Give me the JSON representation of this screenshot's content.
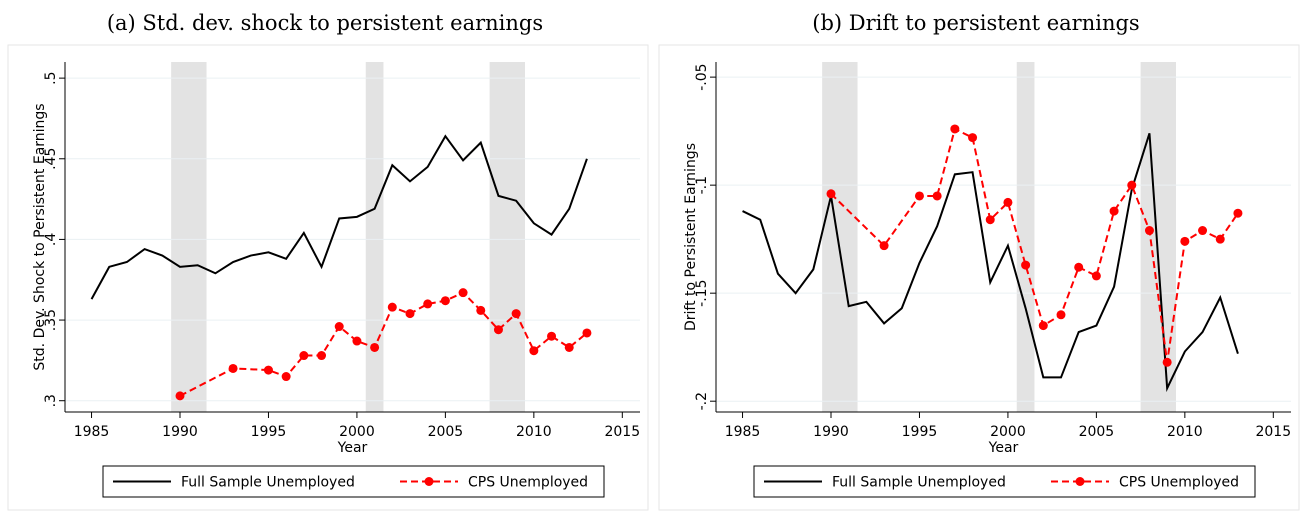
{
  "chart_data": [
    {
      "type": "line",
      "title": "(a) Std. dev. shock to persistent earnings",
      "ylabel": "Std. Dev. Shock to Persistent Earnings",
      "xlabel": "Year",
      "xlim": [
        1983.5,
        2016
      ],
      "xticks": [
        1985,
        1990,
        1995,
        2000,
        2005,
        2010,
        2015
      ],
      "ylim": [
        0.293,
        0.51
      ],
      "yticks": [
        {
          "value": 0.3,
          "label": ".3"
        },
        {
          "value": 0.35,
          "label": ".35"
        },
        {
          "value": 0.4,
          "label": ".4"
        },
        {
          "value": 0.45,
          "label": ".45"
        },
        {
          "value": 0.5,
          "label": ".5"
        }
      ],
      "grid": true,
      "shading": [
        [
          1989.5,
          1991.5
        ],
        [
          2000.5,
          2001.5
        ],
        [
          2007.5,
          2009.5
        ]
      ],
      "series": [
        {
          "name": "Full Sample Unemployed",
          "color": "#000000",
          "markers": false,
          "x": [
            1985,
            1986,
            1987,
            1988,
            1989,
            1990,
            1991,
            1992,
            1993,
            1994,
            1995,
            1996,
            1997,
            1998,
            1999,
            2000,
            2001,
            2002,
            2003,
            2004,
            2005,
            2006,
            2007,
            2008,
            2009,
            2010,
            2011,
            2012,
            2013
          ],
          "values": [
            0.363,
            0.383,
            0.386,
            0.394,
            0.39,
            0.383,
            0.384,
            0.379,
            0.386,
            0.39,
            0.392,
            0.388,
            0.404,
            0.383,
            0.413,
            0.414,
            0.419,
            0.446,
            0.436,
            0.445,
            0.464,
            0.449,
            0.46,
            0.427,
            0.424,
            0.41,
            0.403,
            0.419,
            0.45
          ]
        },
        {
          "name": "CPS Unemployed",
          "color": "#ff0000",
          "markers": true,
          "x": [
            1990,
            1993,
            1995,
            1996,
            1997,
            1998,
            1999,
            2000,
            2001,
            2002,
            2003,
            2004,
            2005,
            2006,
            2007,
            2008,
            2009,
            2010,
            2011,
            2012,
            2013
          ],
          "values": [
            0.303,
            0.32,
            0.319,
            0.315,
            0.328,
            0.328,
            0.346,
            0.337,
            0.333,
            0.358,
            0.354,
            0.36,
            0.362,
            0.367,
            0.356,
            0.344,
            0.354,
            0.331,
            0.34,
            0.333,
            0.342
          ]
        }
      ]
    },
    {
      "type": "line",
      "title": "(b) Drift to persistent earnings",
      "ylabel": "Drift to Persistent Earnings",
      "xlabel": "Year",
      "xlim": [
        1983.5,
        2016
      ],
      "xticks": [
        1985,
        1990,
        1995,
        2000,
        2005,
        2010,
        2015
      ],
      "ylim": [
        -0.205,
        -0.043
      ],
      "yticks": [
        {
          "value": -0.2,
          "label": "-.2"
        },
        {
          "value": -0.15,
          "label": "-.15"
        },
        {
          "value": -0.1,
          "label": "-.1"
        },
        {
          "value": -0.05,
          "label": "-.05"
        }
      ],
      "grid": true,
      "shading": [
        [
          1989.5,
          1991.5
        ],
        [
          2000.5,
          2001.5
        ],
        [
          2007.5,
          2009.5
        ]
      ],
      "series": [
        {
          "name": "Full Sample Unemployed",
          "color": "#000000",
          "markers": false,
          "x": [
            1985,
            1986,
            1987,
            1988,
            1989,
            1990,
            1991,
            1992,
            1993,
            1994,
            1995,
            1996,
            1997,
            1998,
            1999,
            2000,
            2001,
            2002,
            2003,
            2004,
            2005,
            2006,
            2007,
            2008,
            2009,
            2010,
            2011,
            2012,
            2013
          ],
          "values": [
            -0.112,
            -0.116,
            -0.141,
            -0.15,
            -0.139,
            -0.105,
            -0.156,
            -0.154,
            -0.164,
            -0.157,
            -0.136,
            -0.119,
            -0.095,
            -0.094,
            -0.145,
            -0.128,
            -0.157,
            -0.189,
            -0.189,
            -0.168,
            -0.165,
            -0.147,
            -0.102,
            -0.076,
            -0.194,
            -0.177,
            -0.168,
            -0.152,
            -0.178
          ]
        },
        {
          "name": "CPS Unemployed",
          "color": "#ff0000",
          "markers": true,
          "x": [
            1990,
            1993,
            1995,
            1996,
            1997,
            1998,
            1999,
            2000,
            2001,
            2002,
            2003,
            2004,
            2005,
            2006,
            2007,
            2008,
            2009,
            2010,
            2011,
            2012,
            2013
          ],
          "values": [
            -0.104,
            -0.128,
            -0.105,
            -0.105,
            -0.074,
            -0.078,
            -0.116,
            -0.108,
            -0.137,
            -0.165,
            -0.16,
            -0.138,
            -0.142,
            -0.112,
            -0.1,
            -0.121,
            -0.182,
            -0.126,
            -0.121,
            -0.125,
            -0.113
          ]
        }
      ]
    }
  ]
}
